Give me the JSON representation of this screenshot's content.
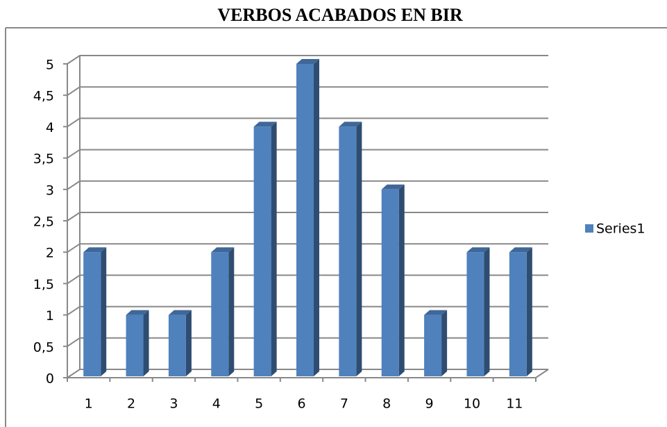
{
  "chart_data": {
    "type": "bar",
    "title": "VERBOS ACABADOS EN BIR",
    "categories": [
      "1",
      "2",
      "3",
      "4",
      "5",
      "6",
      "7",
      "8",
      "9",
      "10",
      "11"
    ],
    "series": [
      {
        "name": "Series1",
        "color": "#4f81bd",
        "values": [
          2,
          1,
          1,
          2,
          4,
          5,
          4,
          3,
          1,
          2,
          2
        ]
      }
    ],
    "ylim": [
      0,
      5
    ],
    "yticks": [
      0,
      {
        "value": 0.5,
        "label": "0,5"
      },
      1,
      {
        "value": 1.5,
        "label": "1,5"
      },
      2,
      {
        "value": 2.5,
        "label": "2,5"
      },
      3,
      {
        "value": 3.5,
        "label": "3,5"
      },
      4,
      {
        "value": 4.5,
        "label": "4,5"
      },
      5
    ],
    "grid": true,
    "legend": "right"
  }
}
